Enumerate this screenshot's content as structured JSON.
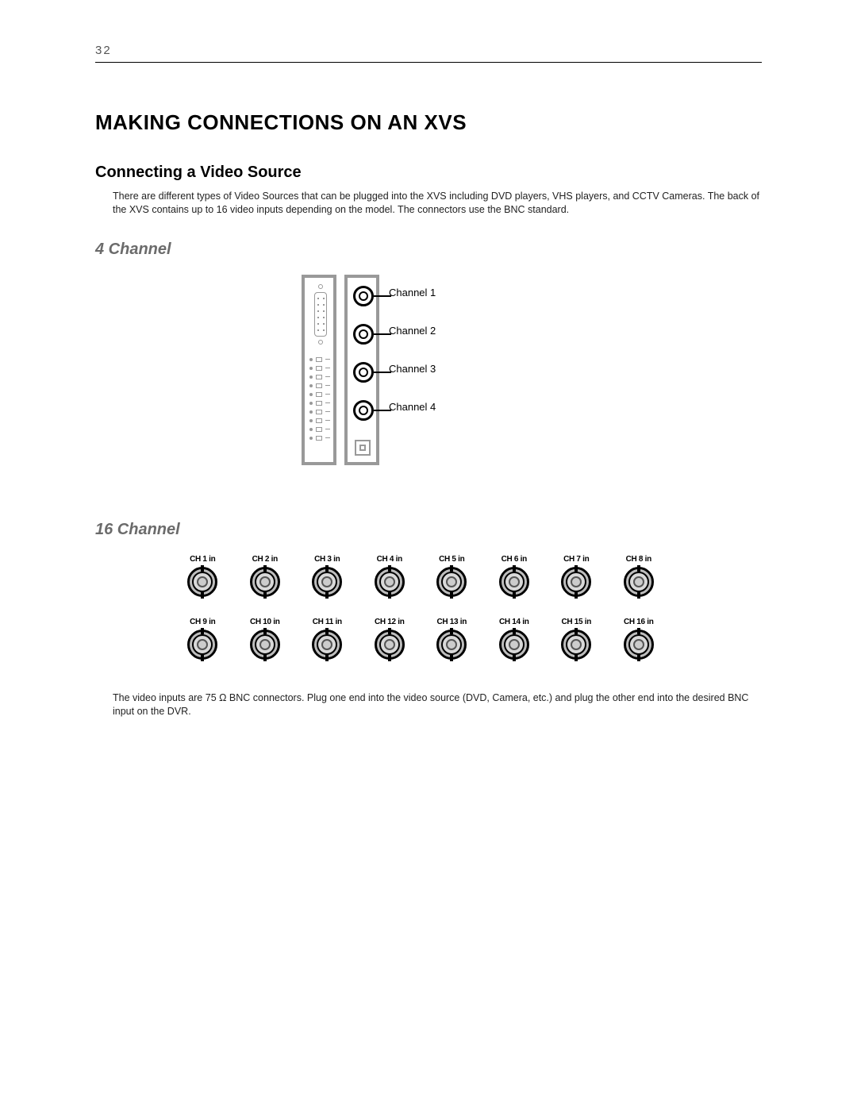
{
  "page_number": "32",
  "title": "MAKING CONNECTIONS ON AN XVS",
  "section_heading": "Connecting a Video Source",
  "intro_paragraph": "There are different types of Video Sources that can be plugged into the XVS including DVD players, VHS players, and CCTV Cameras. The back of the XVS contains up to 16 video inputs depending on the model. The connectors use the BNC standard.",
  "four_channel": {
    "heading": "4 Channel",
    "channels": [
      {
        "label": "Channel 1"
      },
      {
        "label": "Channel 2"
      },
      {
        "label": "Channel 3"
      },
      {
        "label": "Channel 4"
      }
    ],
    "diagram": {
      "border_color": "#999999",
      "bnc_stroke": "#000000",
      "dip_rows": 10
    }
  },
  "sixteen_channel": {
    "heading": "16 Channel",
    "connectors": [
      {
        "label": "CH 1 in"
      },
      {
        "label": "CH 2 in"
      },
      {
        "label": "CH 3 in"
      },
      {
        "label": "CH 4 in"
      },
      {
        "label": "CH 5 in"
      },
      {
        "label": "CH 6 in"
      },
      {
        "label": "CH 7 in"
      },
      {
        "label": "CH 8 in"
      },
      {
        "label": "CH 9 in"
      },
      {
        "label": "CH 10 in"
      },
      {
        "label": "CH 11 in"
      },
      {
        "label": "CH 12 in"
      },
      {
        "label": "CH 13 in"
      },
      {
        "label": "CH 14 in"
      },
      {
        "label": "CH 15 in"
      },
      {
        "label": "CH 16 in"
      }
    ],
    "style": {
      "outer_fill": "#bdbdbd",
      "mid_fill": "#d9d9d9",
      "inner_fill": "#cccccc",
      "stroke": "#000000"
    }
  },
  "footnote": "The video inputs are 75 Ω BNC connectors. Plug one end into the video source (DVD, Camera, etc.) and plug the other end into the desired BNC input on the DVR."
}
